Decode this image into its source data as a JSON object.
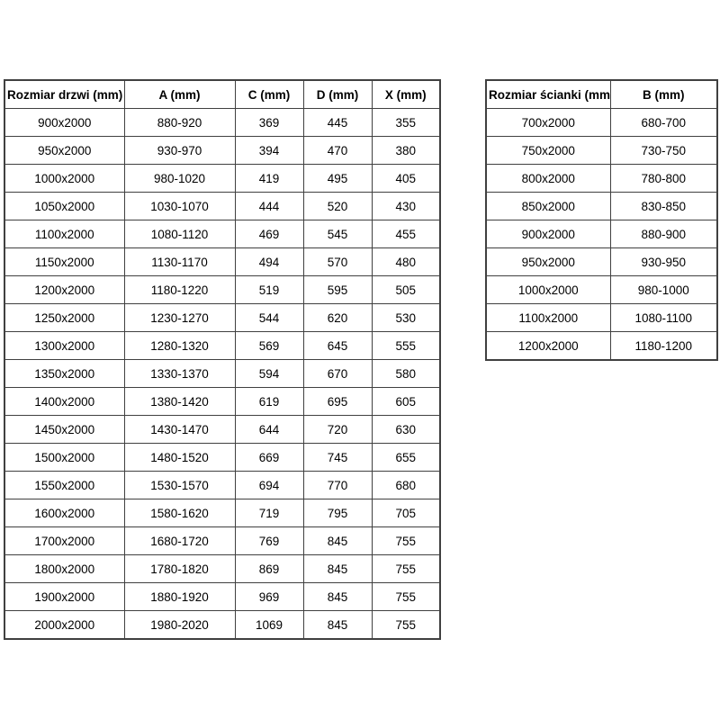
{
  "colors": {
    "background": "#ffffff",
    "border": "#404040",
    "text": "#000000"
  },
  "tables": {
    "doors": {
      "name": "door-sizes-table",
      "headers": [
        "Rozmiar drzwi (mm)",
        "A (mm)",
        "C (mm)",
        "D (mm)",
        "X (mm)"
      ],
      "rows": [
        [
          "900x2000",
          "880-920",
          "369",
          "445",
          "355"
        ],
        [
          "950x2000",
          "930-970",
          "394",
          "470",
          "380"
        ],
        [
          "1000x2000",
          "980-1020",
          "419",
          "495",
          "405"
        ],
        [
          "1050x2000",
          "1030-1070",
          "444",
          "520",
          "430"
        ],
        [
          "1100x2000",
          "1080-1120",
          "469",
          "545",
          "455"
        ],
        [
          "1150x2000",
          "1130-1170",
          "494",
          "570",
          "480"
        ],
        [
          "1200x2000",
          "1180-1220",
          "519",
          "595",
          "505"
        ],
        [
          "1250x2000",
          "1230-1270",
          "544",
          "620",
          "530"
        ],
        [
          "1300x2000",
          "1280-1320",
          "569",
          "645",
          "555"
        ],
        [
          "1350x2000",
          "1330-1370",
          "594",
          "670",
          "580"
        ],
        [
          "1400x2000",
          "1380-1420",
          "619",
          "695",
          "605"
        ],
        [
          "1450x2000",
          "1430-1470",
          "644",
          "720",
          "630"
        ],
        [
          "1500x2000",
          "1480-1520",
          "669",
          "745",
          "655"
        ],
        [
          "1550x2000",
          "1530-1570",
          "694",
          "770",
          "680"
        ],
        [
          "1600x2000",
          "1580-1620",
          "719",
          "795",
          "705"
        ],
        [
          "1700x2000",
          "1680-1720",
          "769",
          "845",
          "755"
        ],
        [
          "1800x2000",
          "1780-1820",
          "869",
          "845",
          "755"
        ],
        [
          "1900x2000",
          "1880-1920",
          "969",
          "845",
          "755"
        ],
        [
          "2000x2000",
          "1980-2020",
          "1069",
          "845",
          "755"
        ]
      ]
    },
    "walls": {
      "name": "wall-sizes-table",
      "headers": [
        "Rozmiar ścianki (mm)",
        "B (mm)"
      ],
      "rows": [
        [
          "700x2000",
          "680-700"
        ],
        [
          "750x2000",
          "730-750"
        ],
        [
          "800x2000",
          "780-800"
        ],
        [
          "850x2000",
          "830-850"
        ],
        [
          "900x2000",
          "880-900"
        ],
        [
          "950x2000",
          "930-950"
        ],
        [
          "1000x2000",
          "980-1000"
        ],
        [
          "1100x2000",
          "1080-1100"
        ],
        [
          "1200x2000",
          "1180-1200"
        ]
      ]
    }
  }
}
